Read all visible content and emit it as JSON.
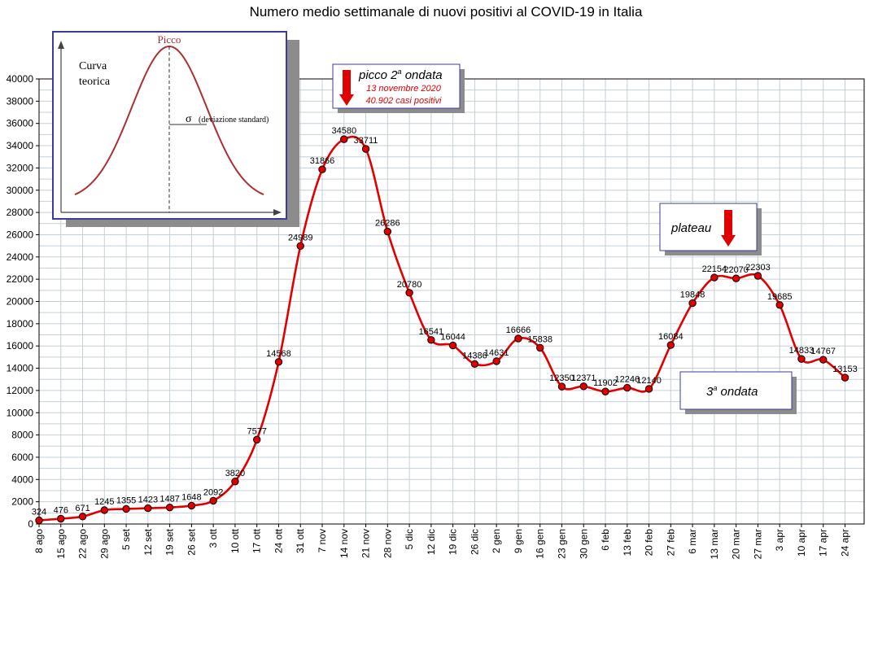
{
  "chart_data": {
    "type": "line",
    "title": "Numero medio settimanale di nuovi positivi al COVID-19 in Italia",
    "xlabel": "",
    "ylabel": "",
    "ylim": [
      0,
      40000
    ],
    "ytick_step": 2000,
    "grid": true,
    "line_color": "#e00000",
    "marker_color": "#e00000",
    "categories": [
      "8 ago",
      "15 ago",
      "22 ago",
      "29 ago",
      "5 set",
      "12 set",
      "19 set",
      "26 set",
      "3 ott",
      "10 ott",
      "17 ott",
      "24 ott",
      "31 ott",
      "7 nov",
      "14 nov",
      "21 nov",
      "28 nov",
      "5 dic",
      "12 dic",
      "19 dic",
      "26 dic",
      "2 gen",
      "9 gen",
      "16 gen",
      "23 gen",
      "30 gen",
      "6 feb",
      "13 feb",
      "20 feb",
      "27 feb",
      "6 mar",
      "13 mar",
      "20 mar",
      "27 mar",
      "3 apr",
      "10 apr",
      "17 apr",
      "24 apr"
    ],
    "values": [
      324,
      476,
      671,
      1245,
      1355,
      1423,
      1487,
      1648,
      2092,
      3820,
      7577,
      14568,
      24989,
      31866,
      34580,
      33711,
      26286,
      20780,
      16541,
      16044,
      14386,
      14631,
      16666,
      15838,
      12350,
      12371,
      11902,
      12246,
      12140,
      16084,
      19848,
      22154,
      22070,
      22303,
      19685,
      14833,
      14767,
      13153
    ],
    "annotations": [
      {
        "name": "peak-second-wave",
        "title_main": "picco 2",
        "title_sup": "a",
        "title_rest": " ondata",
        "line1": "13 novembre 2020",
        "line2": "40.902 casi positivi"
      },
      {
        "name": "plateau",
        "title": "plateau"
      },
      {
        "name": "third-wave",
        "title_pre": "3",
        "title_sup": "a",
        "title_rest": " ondata"
      }
    ],
    "inset": {
      "title": "Curva teorica",
      "title_line1": "Curva",
      "title_line2": "teorica",
      "peak_label": "Picco",
      "sigma_symbol": "σ",
      "sigma_label": "(deviazione standard)"
    }
  }
}
